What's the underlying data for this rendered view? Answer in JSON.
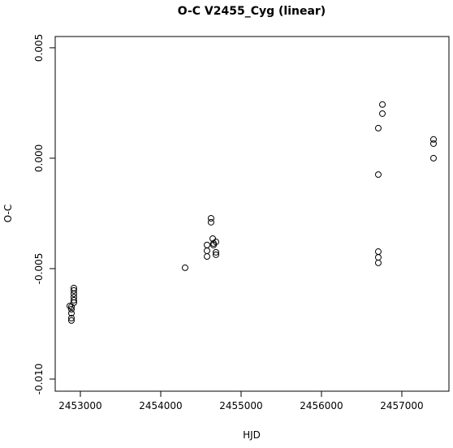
{
  "chart_data": {
    "type": "scatter",
    "title": "O-C V2455_Cyg (linear)",
    "x_label": "HJD",
    "y_label": "O-C",
    "series": [
      {
        "color": "#000000",
        "x": [
          2452889,
          2452889,
          2452889,
          2452889,
          2452889,
          2452869,
          2452919,
          2452919,
          2452919,
          2452919,
          2452919,
          2452919,
          2454303,
          2454576,
          2454576,
          2454576,
          2454626,
          2454626,
          2454647,
          2454657,
          2454657,
          2454687,
          2454687,
          2454687,
          2456707,
          2456707,
          2456707,
          2456707,
          2456707,
          2456758,
          2456758,
          2457394,
          2457394,
          2457394
        ],
        "values": [
          -0.00673,
          -0.00684,
          -0.00702,
          -0.00724,
          -0.00735,
          -0.00669,
          -0.00588,
          -0.00599,
          -0.00614,
          -0.00629,
          -0.00643,
          -0.00654,
          -0.00496,
          -0.00393,
          -0.00419,
          -0.00445,
          -0.00272,
          -0.0029,
          -0.00364,
          -0.00386,
          -0.00393,
          -0.00379,
          -0.00426,
          -0.00437,
          -0.00074,
          0.00136,
          -0.00423,
          -0.00449,
          -0.00474,
          0.00243,
          0.00202,
          0.00085,
          0.00066,
          0.0
        ]
      }
    ],
    "xlim": [
      2452687,
      2457586
    ],
    "ylim": [
      -0.01055,
      0.00551
    ],
    "xticks": [
      2453000,
      2454000,
      2455000,
      2456000,
      2457000
    ],
    "yticks": [
      0.005,
      {
        "value": 0,
        "label": "0.000"
      },
      -0.005,
      {
        "value": -0.01,
        "label": "-0.010"
      }
    ]
  }
}
